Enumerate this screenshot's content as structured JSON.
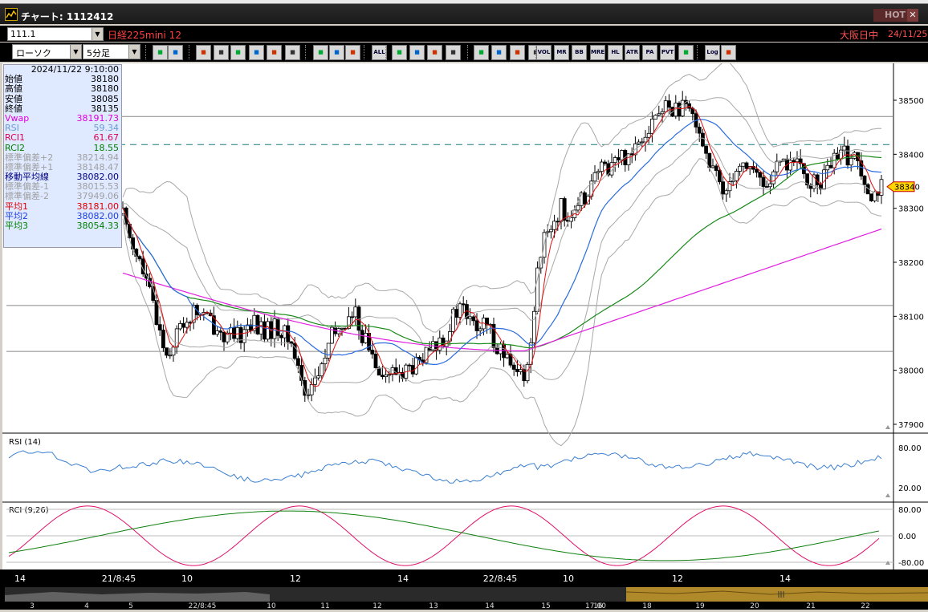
{
  "window": {
    "title": "チャート: 1112412",
    "hot_label": "HOT",
    "close_glyph": "✕"
  },
  "infobar": {
    "symbol_code": "111.1",
    "instrument": "日経225mini 12",
    "market": "大阪日中",
    "date": "24/11/25"
  },
  "toolbar": {
    "chart_type": "ローソク",
    "interval": "5分足",
    "buttons": [
      "search",
      "columns",
      "pen",
      "line",
      "cursor",
      "arrow",
      "memo",
      "delete",
      "candle",
      "bar",
      "line-bar",
      "ALL",
      "zoom",
      "magnify",
      "chart",
      "alert",
      "pin",
      "puzzle",
      "brush",
      "palette",
      "VOL",
      "MR",
      "BB",
      "MRE",
      "HL",
      "ATR",
      "PARA",
      "PVT",
      "box",
      "Log",
      "export"
    ],
    "labels": {
      "ALL": "ALL",
      "VOL": "VOL",
      "MR": "MR",
      "BB": "BB",
      "MRE": "MRE",
      "HL": "HL",
      "ATR": "ATR",
      "PARA": "PA\nRA",
      "PVT": "PVT",
      "Log": "Log"
    }
  },
  "data_panel": {
    "datetime": "2024/11/22  9:10:00",
    "rows": [
      {
        "label": "始値",
        "value": "38180",
        "color": "#000000"
      },
      {
        "label": "高値",
        "value": "38180",
        "color": "#000000"
      },
      {
        "label": "安値",
        "value": "38085",
        "color": "#000000"
      },
      {
        "label": "終値",
        "value": "38135",
        "color": "#000000"
      },
      {
        "label": "Vwap",
        "value": "38191.73",
        "color": "#e000e0"
      },
      {
        "label": "RSI",
        "value": "59.34",
        "color": "#6a9ad8"
      },
      {
        "label": "RCI1",
        "value": "61.67",
        "color": "#e00050"
      },
      {
        "label": "RCI2",
        "value": "18.55",
        "color": "#008000"
      },
      {
        "label": "標準偏差+2",
        "value": "38214.94",
        "color": "#a0a0a0"
      },
      {
        "label": "標準偏差+1",
        "value": "38148.47",
        "color": "#a0a0a0"
      },
      {
        "label": "移動平均線",
        "value": "38082.00",
        "color": "#000080"
      },
      {
        "label": "標準偏差-1",
        "value": "38015.53",
        "color": "#a0a0a0"
      },
      {
        "label": "標準偏差-2",
        "value": "37949.06",
        "color": "#a0a0a0"
      },
      {
        "label": "平均1",
        "value": "38181.00",
        "color": "#e00000"
      },
      {
        "label": "平均2",
        "value": "38082.00",
        "color": "#2040e0"
      },
      {
        "label": "平均3",
        "value": "38054.33",
        "color": "#008000"
      }
    ]
  },
  "chart_data": {
    "type": "candlestick",
    "price_axis": {
      "ticks": [
        "38500",
        "38400",
        "38300",
        "38200",
        "38100",
        "38000",
        "37900"
      ],
      "range": [
        37880,
        38530
      ]
    },
    "current_price_label": "38340",
    "hlines": [
      38470,
      38120,
      38035
    ],
    "dashed_level": 38418,
    "x_ticks": [
      "14",
      "21/8:45",
      "10",
      "12",
      "14",
      "22/8:45",
      "10",
      "12",
      "14"
    ],
    "rsi": {
      "label": "RSI (14)",
      "ticks": [
        "80.00",
        "20.00"
      ]
    },
    "rci": {
      "label": "RCI (9,26)",
      "ticks": [
        "80.00",
        "0.00",
        "-80.00"
      ]
    },
    "overview_ticks": [
      "3",
      "4",
      "5",
      "22/8:45",
      "10",
      "11",
      "12",
      "13",
      "14",
      "15",
      "16",
      "17:00",
      "18",
      "19",
      "20",
      "21",
      "22"
    ],
    "colors": {
      "sma": "#2a6ce0",
      "vwap": "#e020e0",
      "ma3": "#1a8a1a",
      "ma1": "#e01010",
      "bands": "#a8a8a8",
      "rsi": "#3b7fd0",
      "rci1": "#e0106a",
      "rci2": "#108010"
    }
  }
}
